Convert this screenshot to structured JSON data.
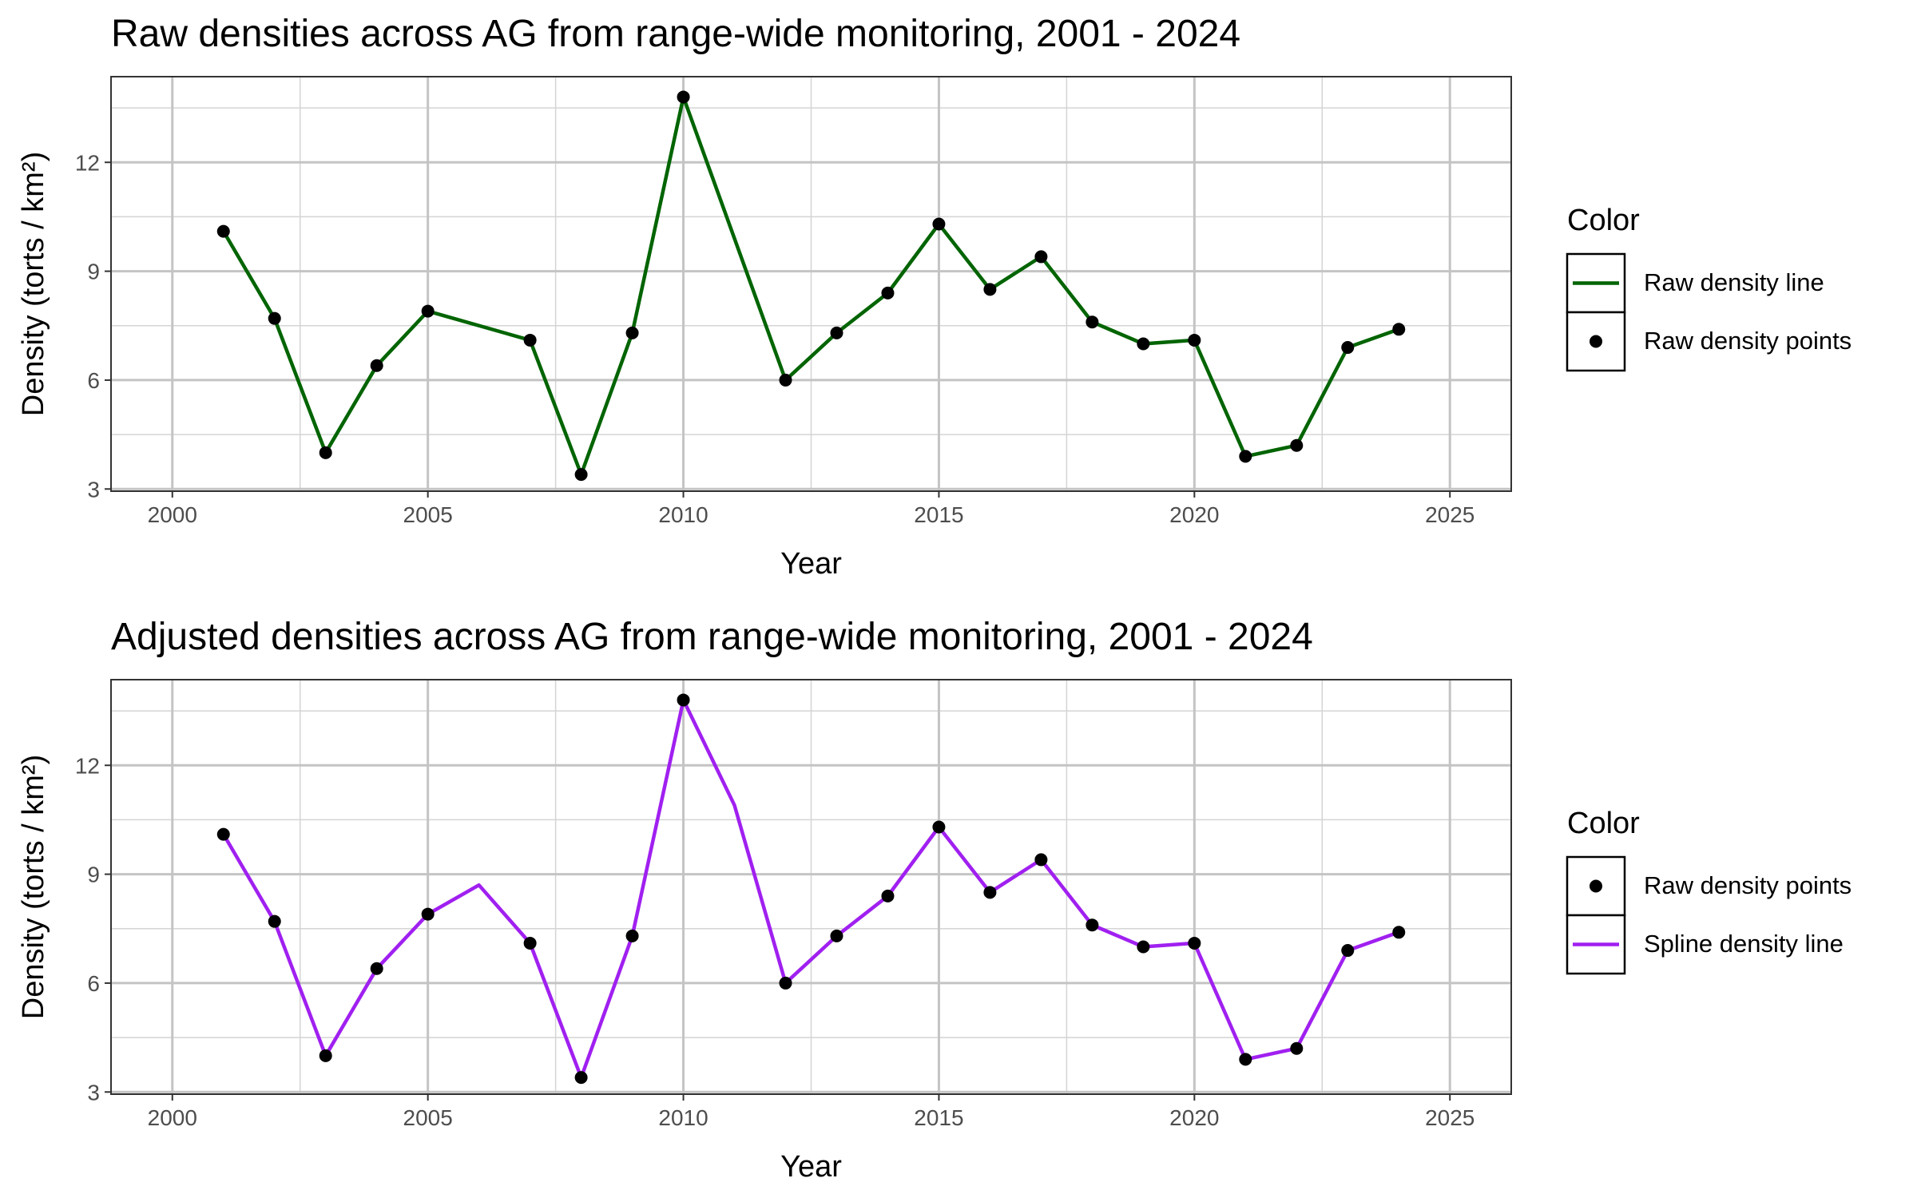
{
  "chart_data": [
    {
      "type": "line",
      "title": "Raw densities across AG from range-wide monitoring, 2001 - 2024",
      "xlabel": "Year",
      "ylabel": "Density (torts / km²)",
      "xlim": [
        1998.8,
        2026.2
      ],
      "ylim": [
        2.94,
        14.36
      ],
      "x_ticks": [
        2000,
        2005,
        2010,
        2015,
        2020,
        2025
      ],
      "y_ticks": [
        3,
        6,
        9,
        12
      ],
      "grid": true,
      "legend_position": "right",
      "legend_title": "Color",
      "series": [
        {
          "name": "Raw density line",
          "kind": "line",
          "color": "#006400",
          "x": [
            2001,
            2002,
            2003,
            2004,
            2005,
            2007,
            2008,
            2009,
            2010,
            2012,
            2013,
            2014,
            2015,
            2016,
            2017,
            2018,
            2019,
            2020,
            2021,
            2022,
            2023,
            2024
          ],
          "y": [
            10.1,
            7.7,
            4.0,
            6.4,
            7.9,
            7.1,
            3.4,
            7.3,
            13.8,
            6.0,
            7.3,
            8.4,
            10.3,
            8.5,
            9.4,
            7.6,
            7.0,
            7.1,
            3.9,
            4.2,
            6.9,
            7.4
          ]
        },
        {
          "name": "Raw density points",
          "kind": "points",
          "color": "#000000",
          "x": [
            2001,
            2002,
            2003,
            2004,
            2005,
            2007,
            2008,
            2009,
            2010,
            2012,
            2013,
            2014,
            2015,
            2016,
            2017,
            2018,
            2019,
            2020,
            2021,
            2022,
            2023,
            2024
          ],
          "y": [
            10.1,
            7.7,
            4.0,
            6.4,
            7.9,
            7.1,
            3.4,
            7.3,
            13.8,
            6.0,
            7.3,
            8.4,
            10.3,
            8.5,
            9.4,
            7.6,
            7.0,
            7.1,
            3.9,
            4.2,
            6.9,
            7.4
          ]
        }
      ],
      "legend_order": [
        "Raw density line",
        "Raw density points"
      ]
    },
    {
      "type": "line",
      "title": "Adjusted densities across AG from range-wide monitoring, 2001 - 2024",
      "xlabel": "Year",
      "ylabel": "Density (torts / km²)",
      "xlim": [
        1998.8,
        2026.2
      ],
      "ylim": [
        2.94,
        14.36
      ],
      "x_ticks": [
        2000,
        2005,
        2010,
        2015,
        2020,
        2025
      ],
      "y_ticks": [
        3,
        6,
        9,
        12
      ],
      "grid": true,
      "legend_position": "right",
      "legend_title": "Color",
      "series": [
        {
          "name": "Spline density line",
          "kind": "line",
          "color": "#A020F0",
          "x": [
            2001,
            2002,
            2003,
            2004,
            2005,
            2006,
            2007,
            2008,
            2009,
            2010,
            2011,
            2012,
            2013,
            2014,
            2015,
            2016,
            2017,
            2018,
            2019,
            2020,
            2021,
            2022,
            2023,
            2024
          ],
          "y": [
            10.1,
            7.7,
            4.0,
            6.4,
            7.9,
            8.7,
            7.1,
            3.4,
            7.3,
            13.8,
            10.9,
            6.0,
            7.3,
            8.4,
            10.3,
            8.5,
            9.4,
            7.6,
            7.0,
            7.1,
            3.9,
            4.2,
            6.9,
            7.4
          ]
        },
        {
          "name": "Raw density points",
          "kind": "points",
          "color": "#000000",
          "x": [
            2001,
            2002,
            2003,
            2004,
            2005,
            2007,
            2008,
            2009,
            2010,
            2012,
            2013,
            2014,
            2015,
            2016,
            2017,
            2018,
            2019,
            2020,
            2021,
            2022,
            2023,
            2024
          ],
          "y": [
            10.1,
            7.7,
            4.0,
            6.4,
            7.9,
            7.1,
            3.4,
            7.3,
            13.8,
            6.0,
            7.3,
            8.4,
            10.3,
            8.5,
            9.4,
            7.6,
            7.0,
            7.1,
            3.9,
            4.2,
            6.9,
            7.4
          ]
        }
      ],
      "legend_order": [
        "Raw density points",
        "Spline density line"
      ]
    }
  ]
}
